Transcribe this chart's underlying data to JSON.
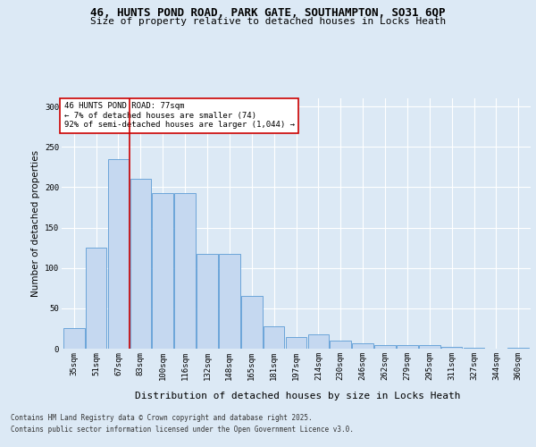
{
  "title1": "46, HUNTS POND ROAD, PARK GATE, SOUTHAMPTON, SO31 6QP",
  "title2": "Size of property relative to detached houses in Locks Heath",
  "xlabel": "Distribution of detached houses by size in Locks Heath",
  "ylabel": "Number of detached properties",
  "bar_labels": [
    "35sqm",
    "51sqm",
    "67sqm",
    "83sqm",
    "100sqm",
    "116sqm",
    "132sqm",
    "148sqm",
    "165sqm",
    "181sqm",
    "197sqm",
    "214sqm",
    "230sqm",
    "246sqm",
    "262sqm",
    "279sqm",
    "295sqm",
    "311sqm",
    "327sqm",
    "344sqm",
    "360sqm"
  ],
  "bar_heights": [
    25,
    125,
    235,
    210,
    193,
    193,
    117,
    117,
    65,
    28,
    14,
    18,
    10,
    7,
    4,
    4,
    4,
    2,
    1,
    0,
    1
  ],
  "bar_color": "#c5d8f0",
  "bar_edge_color": "#5b9bd5",
  "vline_x": 2.5,
  "vline_color": "#cc0000",
  "annotation_text": "46 HUNTS POND ROAD: 77sqm\n← 7% of detached houses are smaller (74)\n92% of semi-detached houses are larger (1,044) →",
  "annotation_box_color": "#ffffff",
  "annotation_box_edge": "#cc0000",
  "ylim": [
    0,
    310
  ],
  "yticks": [
    0,
    50,
    100,
    150,
    200,
    250,
    300
  ],
  "footer1": "Contains HM Land Registry data © Crown copyright and database right 2025.",
  "footer2": "Contains public sector information licensed under the Open Government Licence v3.0.",
  "bg_color": "#dce9f5",
  "plot_bg_color": "#dce9f5",
  "grid_color": "#ffffff",
  "title_fontsize": 9,
  "subtitle_fontsize": 8,
  "tick_fontsize": 6.5,
  "ylabel_fontsize": 7.5,
  "xlabel_fontsize": 8,
  "annotation_fontsize": 6.5,
  "footer_fontsize": 5.5
}
